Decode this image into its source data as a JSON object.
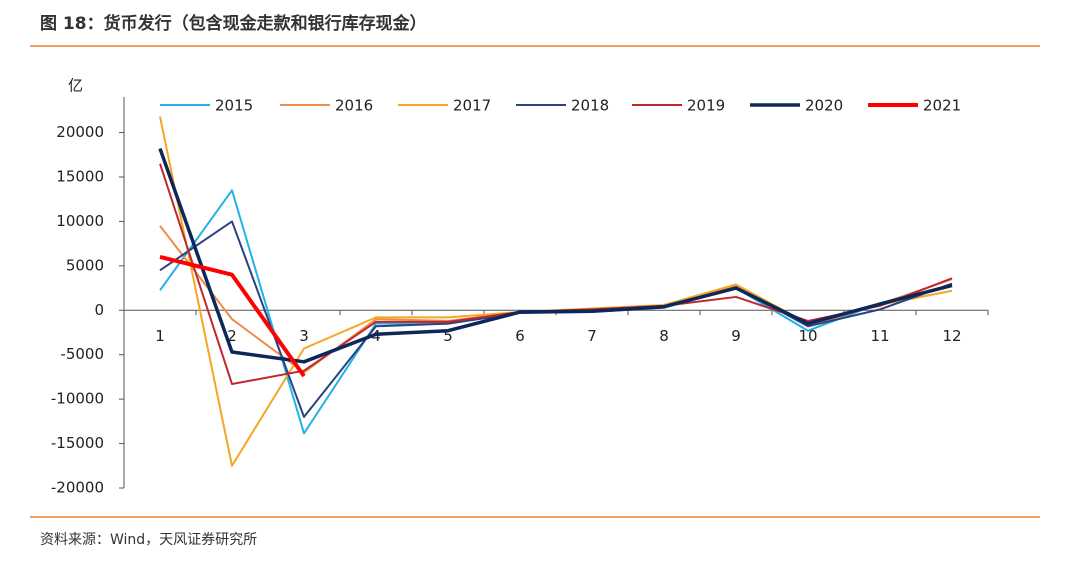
{
  "chart_data": {
    "type": "line",
    "title": "图 18：货币发行（包含现金走款和银行库存现金）",
    "source": "资料来源：Wind，天风证券研究所",
    "y_label": "亿",
    "categories": [
      "1",
      "2",
      "3",
      "4",
      "5",
      "6",
      "7",
      "8",
      "9",
      "10",
      "11",
      "12"
    ],
    "ylim": [
      -20000,
      24000
    ],
    "yticks": [
      -20000,
      -15000,
      -10000,
      -5000,
      0,
      5000,
      10000,
      15000,
      20000
    ],
    "series": [
      {
        "name": "2015",
        "color": "#22b2e6",
        "line_width": 2,
        "values": [
          2250,
          13500,
          -13850,
          -1500,
          -1500,
          -200,
          -100,
          400,
          2500,
          -2300,
          800,
          2800
        ]
      },
      {
        "name": "2016",
        "color": "#f08c4a",
        "line_width": 2,
        "values": [
          9500,
          -1000,
          -7000,
          -1000,
          -1200,
          -200,
          100,
          500,
          2700,
          -1800,
          700,
          3500
        ]
      },
      {
        "name": "2017",
        "color": "#f5a623",
        "line_width": 2,
        "values": [
          21800,
          -17500,
          -4300,
          -800,
          -800,
          -200,
          200,
          600,
          2900,
          -1500,
          600,
          2200
        ]
      },
      {
        "name": "2018",
        "color": "#2b4282",
        "line_width": 2,
        "values": [
          4500,
          10000,
          -12000,
          -1800,
          -1500,
          -300,
          -200,
          300,
          2600,
          -1800,
          100,
          3000
        ]
      },
      {
        "name": "2019",
        "color": "#c0272d",
        "line_width": 2,
        "values": [
          16500,
          -8300,
          -6800,
          -1300,
          -1300,
          -200,
          100,
          500,
          1500,
          -1200,
          500,
          3600
        ]
      },
      {
        "name": "2020",
        "color": "#0e2759",
        "line_width": 3.5,
        "values": [
          18200,
          -4700,
          -5800,
          -2700,
          -2300,
          -200,
          -100,
          400,
          2500,
          -1500,
          700,
          2800
        ]
      },
      {
        "name": "2021",
        "color": "#ff0000",
        "line_width": 4,
        "values": [
          6000,
          4000,
          -7400,
          null,
          null,
          null,
          null,
          null,
          null,
          null,
          null,
          null
        ]
      }
    ]
  }
}
